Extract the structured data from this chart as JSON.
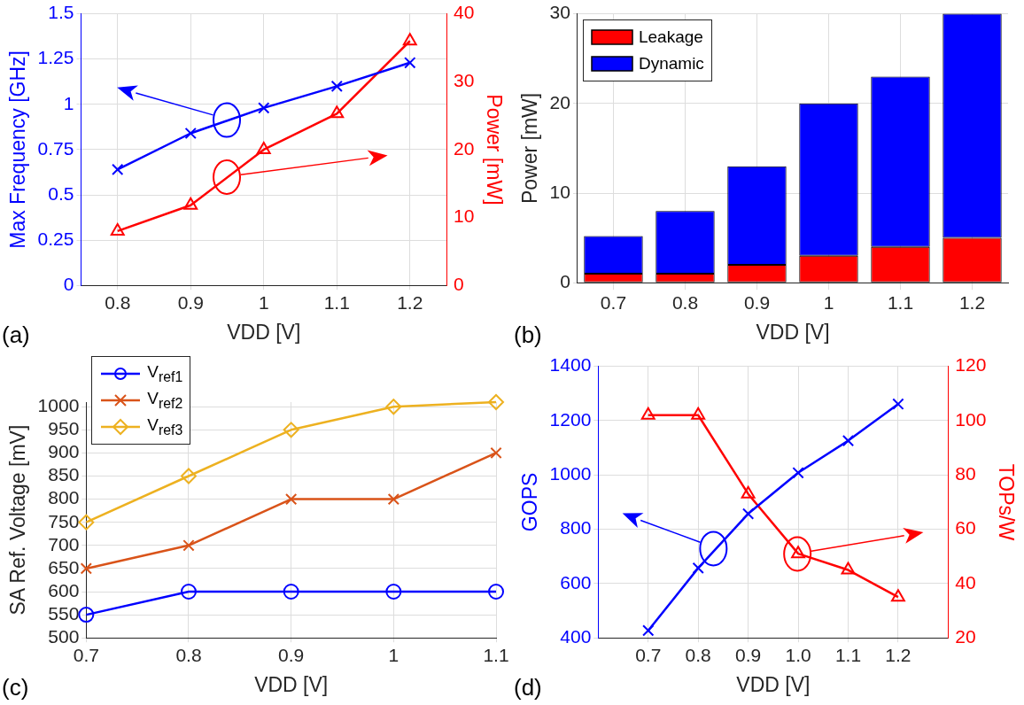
{
  "chart_data": [
    {
      "type": "line",
      "x": [
        0.8,
        0.9,
        1,
        1.1,
        1.2
      ],
      "xlabel": "VDD [V]",
      "ylabel": "Max Frequency [GHz]",
      "y2label": "Power [mW]",
      "xlim": [
        0.75,
        1.25
      ],
      "xticks": [
        0.8,
        0.9,
        1,
        1.1,
        1.2
      ],
      "ylim": [
        0,
        1.5
      ],
      "yticks": [
        0,
        0.25,
        0.5,
        0.75,
        1,
        1.25,
        1.5
      ],
      "y2lim": [
        0,
        40
      ],
      "y2ticks": [
        0,
        10,
        20,
        30,
        40
      ],
      "grid": true,
      "annotations": [
        "(a)"
      ],
      "series": [
        {
          "color": "#0000ff",
          "marker": "cross",
          "values": [
            0.64,
            0.84,
            0.98,
            1.1,
            1.23
          ]
        },
        {
          "color": "#ff0000",
          "marker": "triangle",
          "axis": "y2",
          "values": [
            8,
            11.8,
            20,
            25.3,
            36
          ]
        }
      ]
    },
    {
      "type": "bar",
      "stacked": true,
      "categories": [
        "0.7",
        "0.8",
        "0.9",
        "1",
        "1.1",
        "1.2"
      ],
      "xlabel": "VDD [V]",
      "ylabel": "Power [mW]",
      "ylim": [
        0,
        30
      ],
      "yticks": [
        0,
        10,
        20,
        30
      ],
      "grid": true,
      "legend": "top left",
      "annotations": [
        "(b)"
      ],
      "series": [
        {
          "name": "Leakage",
          "color": "#ff0000",
          "values": [
            1,
            1,
            2,
            3,
            4,
            5
          ]
        },
        {
          "name": "Dynamic",
          "color": "#0000ff",
          "values": [
            4.2,
            7,
            11,
            17,
            19,
            25
          ]
        }
      ]
    },
    {
      "type": "line",
      "x": [
        0.7,
        0.8,
        0.9,
        1,
        1.1
      ],
      "xlabel": "VDD [V]",
      "ylabel": "SA Ref. Voltage [mV]",
      "xlim": [
        0.7,
        1.1
      ],
      "xticks": [
        0.7,
        0.8,
        0.9,
        1,
        1.1
      ],
      "ylim": [
        500,
        1010
      ],
      "yticks": [
        500,
        550,
        600,
        650,
        700,
        750,
        800,
        850,
        900,
        950,
        1000
      ],
      "grid": true,
      "legend": "top left",
      "annotations": [
        "(c)"
      ],
      "series": [
        {
          "name": "V$_{ref1}$",
          "color": "#0000ff",
          "marker": "circle",
          "values": [
            550,
            600,
            600,
            600,
            600
          ]
        },
        {
          "name": "V$_{ref2}$",
          "color": "#d95319",
          "marker": "cross",
          "values": [
            650,
            700,
            800,
            800,
            900
          ]
        },
        {
          "name": "V$_{ref3}$",
          "color": "#edb120",
          "marker": "diamond",
          "values": [
            750,
            850,
            950,
            1000,
            1010
          ]
        }
      ]
    },
    {
      "type": "line",
      "x": [
        0.7,
        0.8,
        0.9,
        1,
        1.1,
        1.2
      ],
      "xlabel": "VDD [V]",
      "ylabel": "GOPS",
      "y2label": "TOPs/W",
      "xlim": [
        0.6,
        1.3
      ],
      "xticks": [
        0.7,
        0.8,
        0.9,
        {
          "value": 1,
          "label": "1.0"
        },
        1.1,
        1.2
      ],
      "ylim": [
        400,
        1400
      ],
      "yticks": [
        400,
        600,
        800,
        1000,
        1200,
        1400
      ],
      "y2lim": [
        20,
        120
      ],
      "y2ticks": [
        20,
        40,
        60,
        80,
        100,
        120
      ],
      "grid": true,
      "annotations": [
        "(d)"
      ],
      "series": [
        {
          "color": "#0000ff",
          "marker": "cross",
          "values": [
            427,
            657,
            857,
            1008,
            1126,
            1261
          ]
        },
        {
          "color": "#ff0000",
          "marker": "triangle",
          "axis": "y2",
          "values": [
            102,
            102,
            73,
            51,
            45,
            35
          ]
        }
      ]
    }
  ]
}
